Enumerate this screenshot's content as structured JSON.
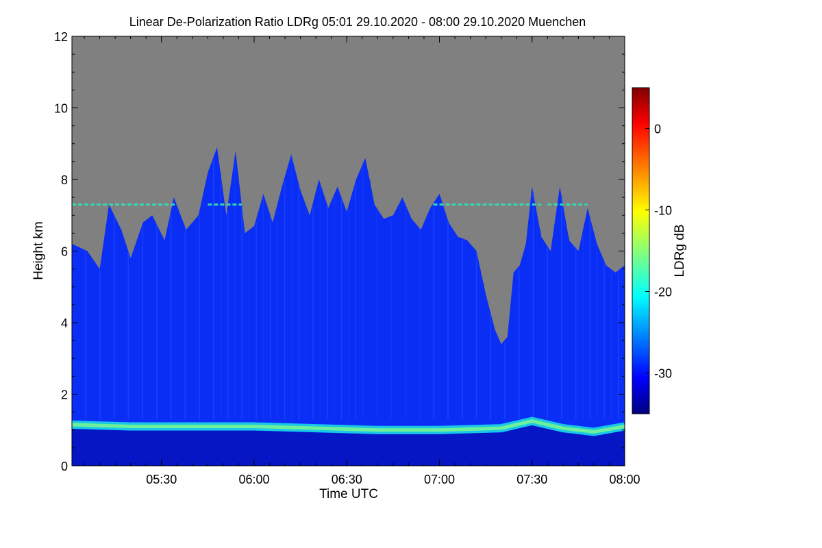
{
  "chart_data": {
    "type": "heatmap",
    "title": "Linear De-Polarization Ratio LDRg   05:01 29.10.2020 - 08:00 29.10.2020 Muenchen",
    "xlabel": "Time UTC",
    "ylabel": "Height km",
    "x_range_minutes_utc": [
      301,
      480
    ],
    "xticks": [
      {
        "label": "05:30",
        "minutes": 330
      },
      {
        "label": "06:00",
        "minutes": 360
      },
      {
        "label": "06:30",
        "minutes": 390
      },
      {
        "label": "07:00",
        "minutes": 420
      },
      {
        "label": "07:30",
        "minutes": 450
      },
      {
        "label": "08:00",
        "minutes": 480
      }
    ],
    "ylim": [
      0,
      12
    ],
    "yticks": [
      0,
      2,
      4,
      6,
      8,
      10,
      12
    ],
    "no_data_color": "#808080",
    "colorbar": {
      "label": "LDRg dB",
      "range": [
        -35,
        5
      ],
      "ticks": [
        0,
        -10,
        -20,
        -30
      ],
      "colormap": "jet"
    },
    "features": {
      "cloud_top_km": [
        {
          "t": 301,
          "h": 6.2
        },
        {
          "t": 306,
          "h": 6.0
        },
        {
          "t": 310,
          "h": 5.5
        },
        {
          "t": 313,
          "h": 7.3
        },
        {
          "t": 317,
          "h": 6.6
        },
        {
          "t": 320,
          "h": 5.8
        },
        {
          "t": 324,
          "h": 6.8
        },
        {
          "t": 327,
          "h": 7.0
        },
        {
          "t": 331,
          "h": 6.3
        },
        {
          "t": 334,
          "h": 7.5
        },
        {
          "t": 338,
          "h": 6.6
        },
        {
          "t": 342,
          "h": 7.0
        },
        {
          "t": 345,
          "h": 8.2
        },
        {
          "t": 348,
          "h": 8.9
        },
        {
          "t": 351,
          "h": 7.0
        },
        {
          "t": 354,
          "h": 8.8
        },
        {
          "t": 357,
          "h": 6.5
        },
        {
          "t": 360,
          "h": 6.7
        },
        {
          "t": 363,
          "h": 7.6
        },
        {
          "t": 366,
          "h": 6.8
        },
        {
          "t": 369,
          "h": 7.8
        },
        {
          "t": 372,
          "h": 8.7
        },
        {
          "t": 375,
          "h": 7.7
        },
        {
          "t": 378,
          "h": 7.0
        },
        {
          "t": 381,
          "h": 8.0
        },
        {
          "t": 384,
          "h": 7.2
        },
        {
          "t": 387,
          "h": 7.8
        },
        {
          "t": 390,
          "h": 7.1
        },
        {
          "t": 393,
          "h": 8.0
        },
        {
          "t": 396,
          "h": 8.6
        },
        {
          "t": 399,
          "h": 7.3
        },
        {
          "t": 402,
          "h": 6.9
        },
        {
          "t": 405,
          "h": 7.0
        },
        {
          "t": 408,
          "h": 7.5
        },
        {
          "t": 411,
          "h": 6.9
        },
        {
          "t": 414,
          "h": 6.6
        },
        {
          "t": 417,
          "h": 7.2
        },
        {
          "t": 420,
          "h": 7.6
        },
        {
          "t": 423,
          "h": 6.8
        },
        {
          "t": 426,
          "h": 6.4
        },
        {
          "t": 429,
          "h": 6.3
        },
        {
          "t": 432,
          "h": 6.0
        },
        {
          "t": 435,
          "h": 4.8
        },
        {
          "t": 438,
          "h": 3.8
        },
        {
          "t": 440,
          "h": 3.4
        },
        {
          "t": 442,
          "h": 3.6
        },
        {
          "t": 444,
          "h": 5.4
        },
        {
          "t": 446,
          "h": 5.6
        },
        {
          "t": 448,
          "h": 6.2
        },
        {
          "t": 450,
          "h": 7.8
        },
        {
          "t": 453,
          "h": 6.4
        },
        {
          "t": 456,
          "h": 6.0
        },
        {
          "t": 459,
          "h": 7.8
        },
        {
          "t": 462,
          "h": 6.3
        },
        {
          "t": 465,
          "h": 6.0
        },
        {
          "t": 468,
          "h": 7.2
        },
        {
          "t": 471,
          "h": 6.2
        },
        {
          "t": 474,
          "h": 5.6
        },
        {
          "t": 477,
          "h": 5.4
        },
        {
          "t": 480,
          "h": 5.6
        }
      ],
      "boundary_layer_top_km": [
        {
          "t": 301,
          "h": 1.15
        },
        {
          "t": 320,
          "h": 1.1
        },
        {
          "t": 340,
          "h": 1.1
        },
        {
          "t": 360,
          "h": 1.1
        },
        {
          "t": 380,
          "h": 1.05
        },
        {
          "t": 400,
          "h": 1.0
        },
        {
          "t": 420,
          "h": 1.0
        },
        {
          "t": 440,
          "h": 1.05
        },
        {
          "t": 450,
          "h": 1.25
        },
        {
          "t": 460,
          "h": 1.05
        },
        {
          "t": 470,
          "h": 0.95
        },
        {
          "t": 480,
          "h": 1.1
        }
      ],
      "artifact_line_km": 7.3
    }
  }
}
